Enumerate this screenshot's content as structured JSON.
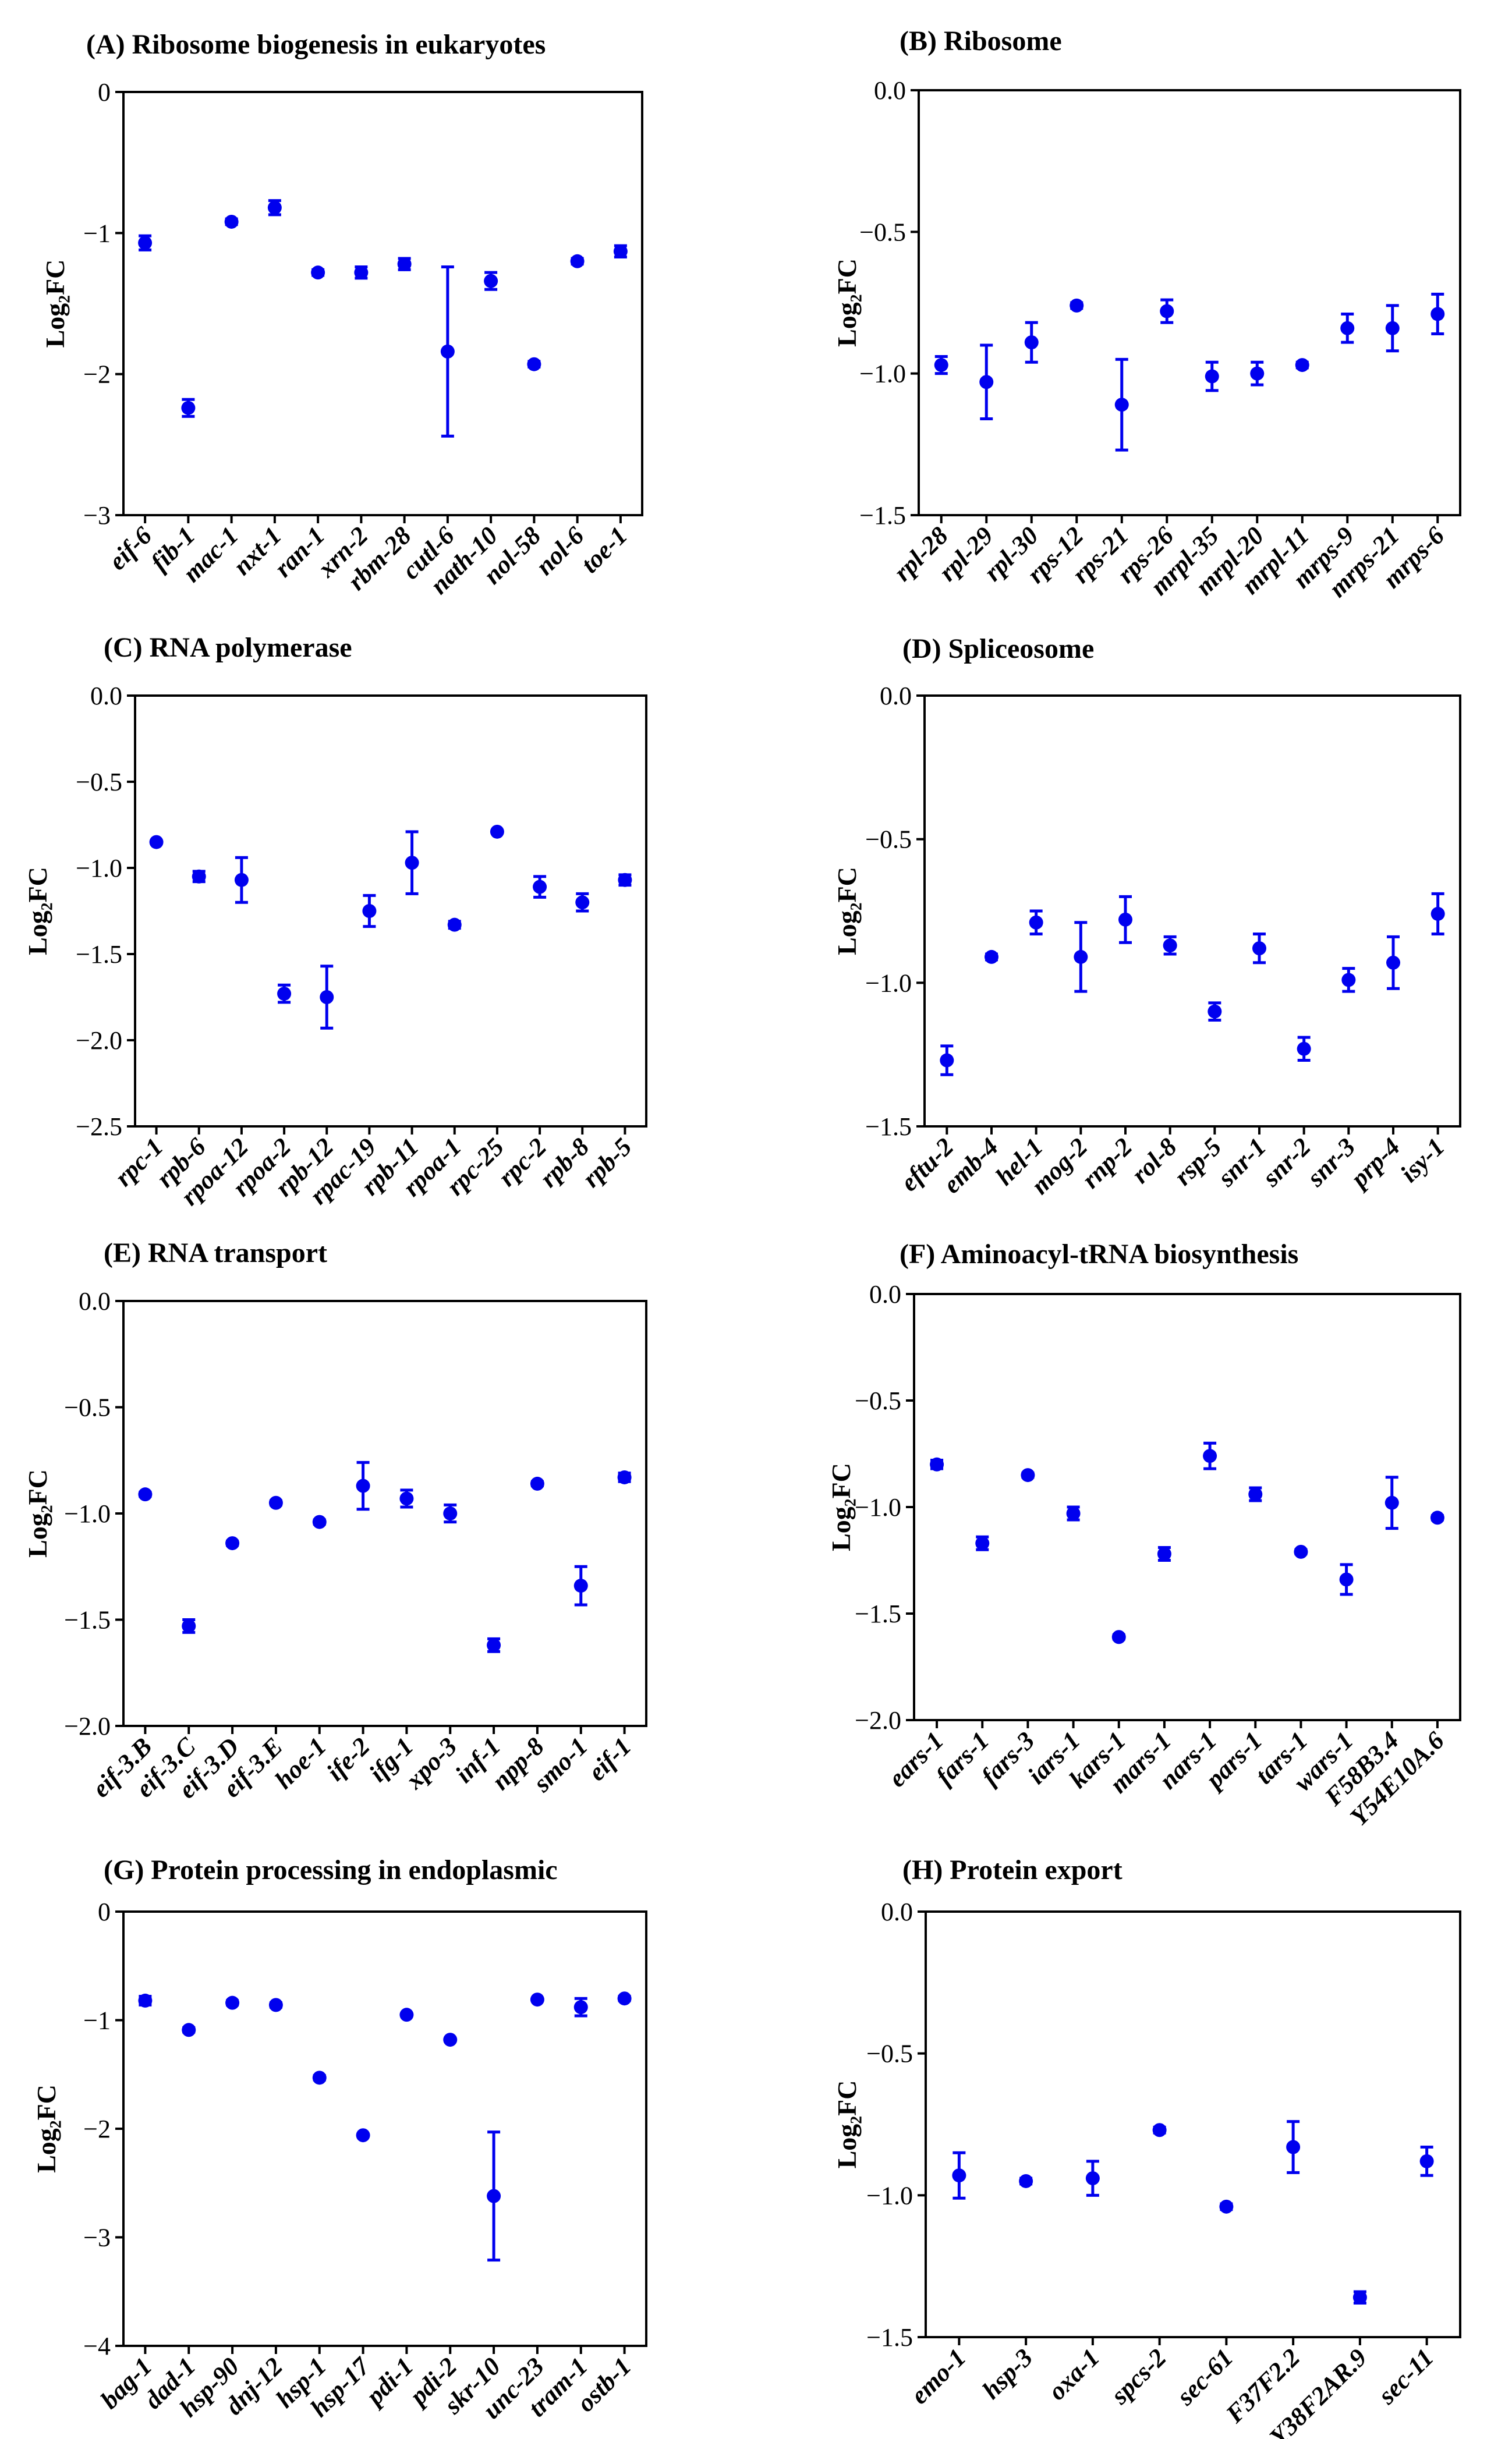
{
  "point_color": "#0000ee",
  "chart_data": [
    {
      "type": "scatter",
      "title": "(A) Ribosome biogenesis in eukaryotes",
      "ylabel": "Log₂FC",
      "ylim": [
        -3,
        0
      ],
      "yticks": [
        0,
        -1,
        -2,
        -3
      ],
      "ytick_labels": [
        "0",
        "−1",
        "−2",
        "−3"
      ],
      "categories": [
        "eif-6",
        "fib-1",
        "mac-1",
        "nxt-1",
        "ran-1",
        "xrn-2",
        "rbm-28",
        "cutl-6",
        "nath-10",
        "nol-58",
        "nol-6",
        "toe-1"
      ],
      "values": [
        -1.07,
        -2.24,
        -0.92,
        -0.82,
        -1.28,
        -1.28,
        -1.22,
        -1.84,
        -1.34,
        -1.93,
        -1.2,
        -1.13
      ],
      "errors": [
        0.05,
        0.06,
        0.02,
        0.05,
        0.02,
        0.04,
        0.04,
        0.6,
        0.06,
        0.02,
        0.02,
        0.04
      ]
    },
    {
      "type": "scatter",
      "title": "(B) Ribosome",
      "ylabel": "Log₂FC",
      "ylim": [
        -1.5,
        0
      ],
      "yticks": [
        0,
        -0.5,
        -1,
        -1.5
      ],
      "ytick_labels": [
        "0.0",
        "−0.5",
        "−1.0",
        "−1.5"
      ],
      "categories": [
        "rpl-28",
        "rpl-29",
        "rpl-30",
        "rps-12",
        "rps-21",
        "rps-26",
        "mrpl-35",
        "mrpl-20",
        "mrpl-11",
        "mrps-9",
        "mrps-21",
        "mrps-6"
      ],
      "values": [
        -0.97,
        -1.03,
        -0.89,
        -0.76,
        -1.11,
        -0.78,
        -1.01,
        -1.0,
        -0.97,
        -0.84,
        -0.84,
        -0.79
      ],
      "errors": [
        0.03,
        0.13,
        0.07,
        0.01,
        0.16,
        0.04,
        0.05,
        0.04,
        0.01,
        0.05,
        0.08,
        0.07
      ]
    },
    {
      "type": "scatter",
      "title": "(C) RNA polymerase",
      "ylabel": "Log₂FC",
      "ylim": [
        -2.5,
        0
      ],
      "yticks": [
        0,
        -0.5,
        -1,
        -1.5,
        -2,
        -2.5
      ],
      "ytick_labels": [
        "0.0",
        "−0.5",
        "−1.0",
        "−1.5",
        "−2.0",
        "−2.5"
      ],
      "categories": [
        "rpc-1",
        "rpb-6",
        "rpoa-12",
        "rpoa-2",
        "rpb-12",
        "rpac-19",
        "rpb-11",
        "rpoa-1",
        "rpc-25",
        "rpc-2",
        "rpb-8",
        "rpb-5"
      ],
      "values": [
        -0.85,
        -1.05,
        -1.07,
        -1.73,
        -1.75,
        -1.25,
        -0.97,
        -1.33,
        -0.79,
        -1.11,
        -1.2,
        -1.07
      ],
      "errors": [
        0.01,
        0.03,
        0.13,
        0.05,
        0.18,
        0.09,
        0.18,
        0.02,
        0.01,
        0.06,
        0.05,
        0.03
      ]
    },
    {
      "type": "scatter",
      "title": "(D) Spliceosome",
      "ylabel": "Log₂FC",
      "ylim": [
        -1.5,
        0
      ],
      "yticks": [
        0,
        -0.5,
        -1,
        -1.5
      ],
      "ytick_labels": [
        "0.0",
        "−0.5",
        "−1.0",
        "−1.5"
      ],
      "categories": [
        "eftu-2",
        "emb-4",
        "hel-1",
        "mog-2",
        "rnp-2",
        "rol-8",
        "rsp-5",
        "snr-1",
        "snr-2",
        "snr-3",
        "prp-4",
        "isy-1"
      ],
      "values": [
        -1.27,
        -0.91,
        -0.79,
        -0.91,
        -0.78,
        -0.87,
        -1.1,
        -0.88,
        -1.23,
        -0.99,
        -0.93,
        -0.76
      ],
      "errors": [
        0.05,
        0.01,
        0.04,
        0.12,
        0.08,
        0.03,
        0.03,
        0.05,
        0.04,
        0.04,
        0.09,
        0.07
      ]
    },
    {
      "type": "scatter",
      "title": "(E) RNA transport",
      "ylabel": "Log₂FC",
      "ylim": [
        -2,
        0
      ],
      "yticks": [
        0,
        -0.5,
        -1,
        -1.5,
        -2
      ],
      "ytick_labels": [
        "0.0",
        "−0.5",
        "−1.0",
        "−1.5",
        "−2.0"
      ],
      "categories": [
        "eif-3.B",
        "eif-3.C",
        "eif-3.D",
        "eif-3.E",
        "hoe-1",
        "ife-2",
        "ifg-1",
        "xpo-3",
        "inf-1",
        "npp-8",
        "smo-1",
        "eif-1"
      ],
      "values": [
        -0.91,
        -1.53,
        -1.14,
        -0.95,
        -1.04,
        -0.87,
        -0.93,
        -1.0,
        -1.62,
        -0.86,
        -1.34,
        -0.83
      ],
      "errors": [
        0.01,
        0.03,
        0.01,
        0.01,
        0.01,
        0.11,
        0.04,
        0.04,
        0.03,
        0.01,
        0.09,
        0.02
      ]
    },
    {
      "type": "scatter",
      "title": "(F) Aminoacyl-tRNA biosynthesis",
      "ylabel": "Log₂FC",
      "ylim": [
        -2,
        0
      ],
      "yticks": [
        0,
        -0.5,
        -1,
        -1.5,
        -2
      ],
      "ytick_labels": [
        "0.0",
        "−0.5",
        "−1.0",
        "−1.5",
        "−2.0"
      ],
      "categories": [
        "ears-1",
        "fars-1",
        "fars-3",
        "iars-1",
        "kars-1",
        "mars-1",
        "nars-1",
        "pars-1",
        "tars-1",
        "wars-1",
        "F58B3.4",
        "Y54E10A.6"
      ],
      "values": [
        -0.8,
        -1.17,
        -0.85,
        -1.03,
        -1.61,
        -1.22,
        -0.76,
        -0.94,
        -1.21,
        -1.34,
        -0.98,
        -1.05
      ],
      "errors": [
        0.02,
        0.03,
        0.01,
        0.03,
        0.01,
        0.03,
        0.06,
        0.03,
        0.01,
        0.07,
        0.12,
        0.01
      ]
    },
    {
      "type": "scatter",
      "title": "(G) Protein processing in endoplasmic",
      "ylabel": "Log₂FC",
      "ylim": [
        -4,
        0
      ],
      "yticks": [
        0,
        -1,
        -2,
        -3,
        -4
      ],
      "ytick_labels": [
        "0",
        "−1",
        "−2",
        "−3",
        "−4"
      ],
      "categories": [
        "bag-1",
        "dad-1",
        "hsp-90",
        "dnj-12",
        "hsp-1",
        "hsp-17",
        "pdi-1",
        "pdi-2",
        "skr-10",
        "unc-23",
        "tram-1",
        "ostb-1"
      ],
      "values": [
        -0.82,
        -1.09,
        -0.84,
        -0.86,
        -1.53,
        -2.06,
        -0.95,
        -1.18,
        -2.62,
        -0.81,
        -0.88,
        -0.8
      ],
      "errors": [
        0.04,
        0.02,
        0.02,
        0.02,
        0.02,
        0.01,
        0.01,
        0.01,
        0.59,
        0.01,
        0.08,
        0.02
      ]
    },
    {
      "type": "scatter",
      "title": "(H) Protein export",
      "ylabel": "Log₂FC",
      "ylim": [
        -1.5,
        0
      ],
      "yticks": [
        0,
        -0.5,
        -1,
        -1.5
      ],
      "ytick_labels": [
        "0.0",
        "−0.5",
        "−1.0",
        "−1.5"
      ],
      "categories": [
        "emo-1",
        "hsp-3",
        "oxa-1",
        "spcs-2",
        "sec-61",
        "F37F2.2",
        "Y38F2AR.9",
        "sec-11"
      ],
      "values": [
        -0.93,
        -0.95,
        -0.94,
        -0.77,
        -1.04,
        -0.83,
        -1.36,
        -0.88
      ],
      "errors": [
        0.08,
        0.01,
        0.06,
        0.01,
        0.01,
        0.09,
        0.02,
        0.05
      ]
    }
  ]
}
